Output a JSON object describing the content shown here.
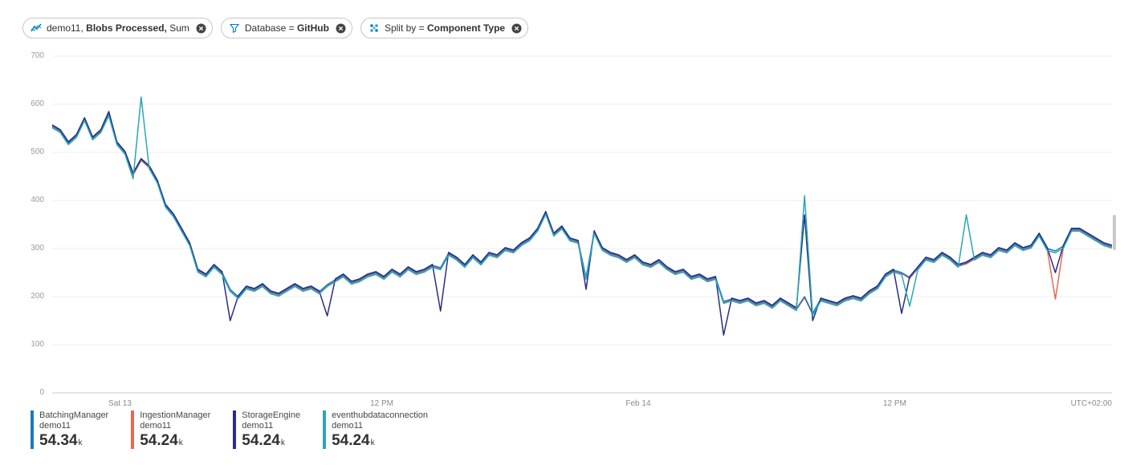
{
  "pills": {
    "metric": {
      "prefix": "demo11, ",
      "strong": "Blobs Processed,",
      "suffix": " Sum"
    },
    "filter": {
      "prefix": "Database = ",
      "strong": "GitHub",
      "suffix": ""
    },
    "split": {
      "prefix": "Split by = ",
      "strong": "Component Type",
      "suffix": ""
    }
  },
  "chart_data": {
    "type": "line",
    "ylim": [
      0,
      700
    ],
    "yticks": [
      700,
      600,
      500,
      400,
      300,
      200,
      100,
      0
    ],
    "xticks": [
      {
        "label": "Sat 13",
        "pos": 0.064
      },
      {
        "label": "12 PM",
        "pos": 0.311
      },
      {
        "label": "Feb 14",
        "pos": 0.553
      },
      {
        "label": "12 PM",
        "pos": 0.795
      }
    ],
    "timezone": "UTC+02:00",
    "base": [
      555,
      545,
      520,
      535,
      570,
      530,
      545,
      580,
      520,
      500,
      455,
      485,
      470,
      440,
      390,
      370,
      340,
      310,
      255,
      245,
      265,
      250,
      215,
      200,
      220,
      215,
      225,
      210,
      205,
      215,
      225,
      215,
      220,
      210,
      225,
      235,
      245,
      230,
      235,
      245,
      250,
      240,
      255,
      245,
      260,
      250,
      255,
      265,
      260,
      290,
      280,
      265,
      285,
      270,
      290,
      285,
      300,
      295,
      310,
      320,
      340,
      375,
      330,
      345,
      320,
      315,
      240,
      335,
      300,
      290,
      285,
      275,
      285,
      270,
      265,
      275,
      260,
      250,
      255,
      240,
      245,
      235,
      240,
      190,
      195,
      190,
      195,
      185,
      190,
      180,
      195,
      185,
      175,
      200,
      165,
      195,
      190,
      185,
      195,
      200,
      195,
      210,
      220,
      245,
      255,
      250,
      240,
      260,
      280,
      275,
      290,
      280,
      265,
      270,
      280,
      290,
      285,
      300,
      295,
      310,
      300,
      305,
      330,
      300,
      295,
      305,
      340,
      340,
      330,
      320,
      310,
      305
    ],
    "series": [
      {
        "name": "BatchingManager",
        "scope": "demo11",
        "color": "#1c78c0",
        "offset": 0,
        "overrides": {}
      },
      {
        "name": "IngestionManager",
        "scope": "demo11",
        "color": "#e8694f",
        "offset": -2,
        "overrides": {
          "124": 195
        }
      },
      {
        "name": "StorageEngine",
        "scope": "demo11",
        "color": "#2a2e85",
        "offset": 2,
        "overrides": {
          "7": 585,
          "22": 150,
          "34": 160,
          "48": 170,
          "66": 215,
          "83": 120,
          "93": 370,
          "94": 150,
          "105": 165,
          "124": 250
        }
      },
      {
        "name": "eventhubdataconnection",
        "scope": "demo11",
        "color": "#28a7b5",
        "offset": -4,
        "overrides": {
          "10": 445,
          "11": 615,
          "93": 410,
          "106": 180,
          "113": 370
        }
      }
    ]
  },
  "legend": {
    "items": [
      {
        "name": "BatchingManager",
        "scope": "demo11",
        "value": "54.34",
        "unit": "k",
        "color": "#1c78c0"
      },
      {
        "name": "IngestionManager",
        "scope": "demo11",
        "value": "54.24",
        "unit": "k",
        "color": "#e8694f"
      },
      {
        "name": "StorageEngine",
        "scope": "demo11",
        "value": "54.24",
        "unit": "k",
        "color": "#2a2e85"
      },
      {
        "name": "eventhubdataconnection",
        "scope": "demo11",
        "value": "54.24",
        "unit": "k",
        "color": "#28a7b5"
      }
    ]
  }
}
